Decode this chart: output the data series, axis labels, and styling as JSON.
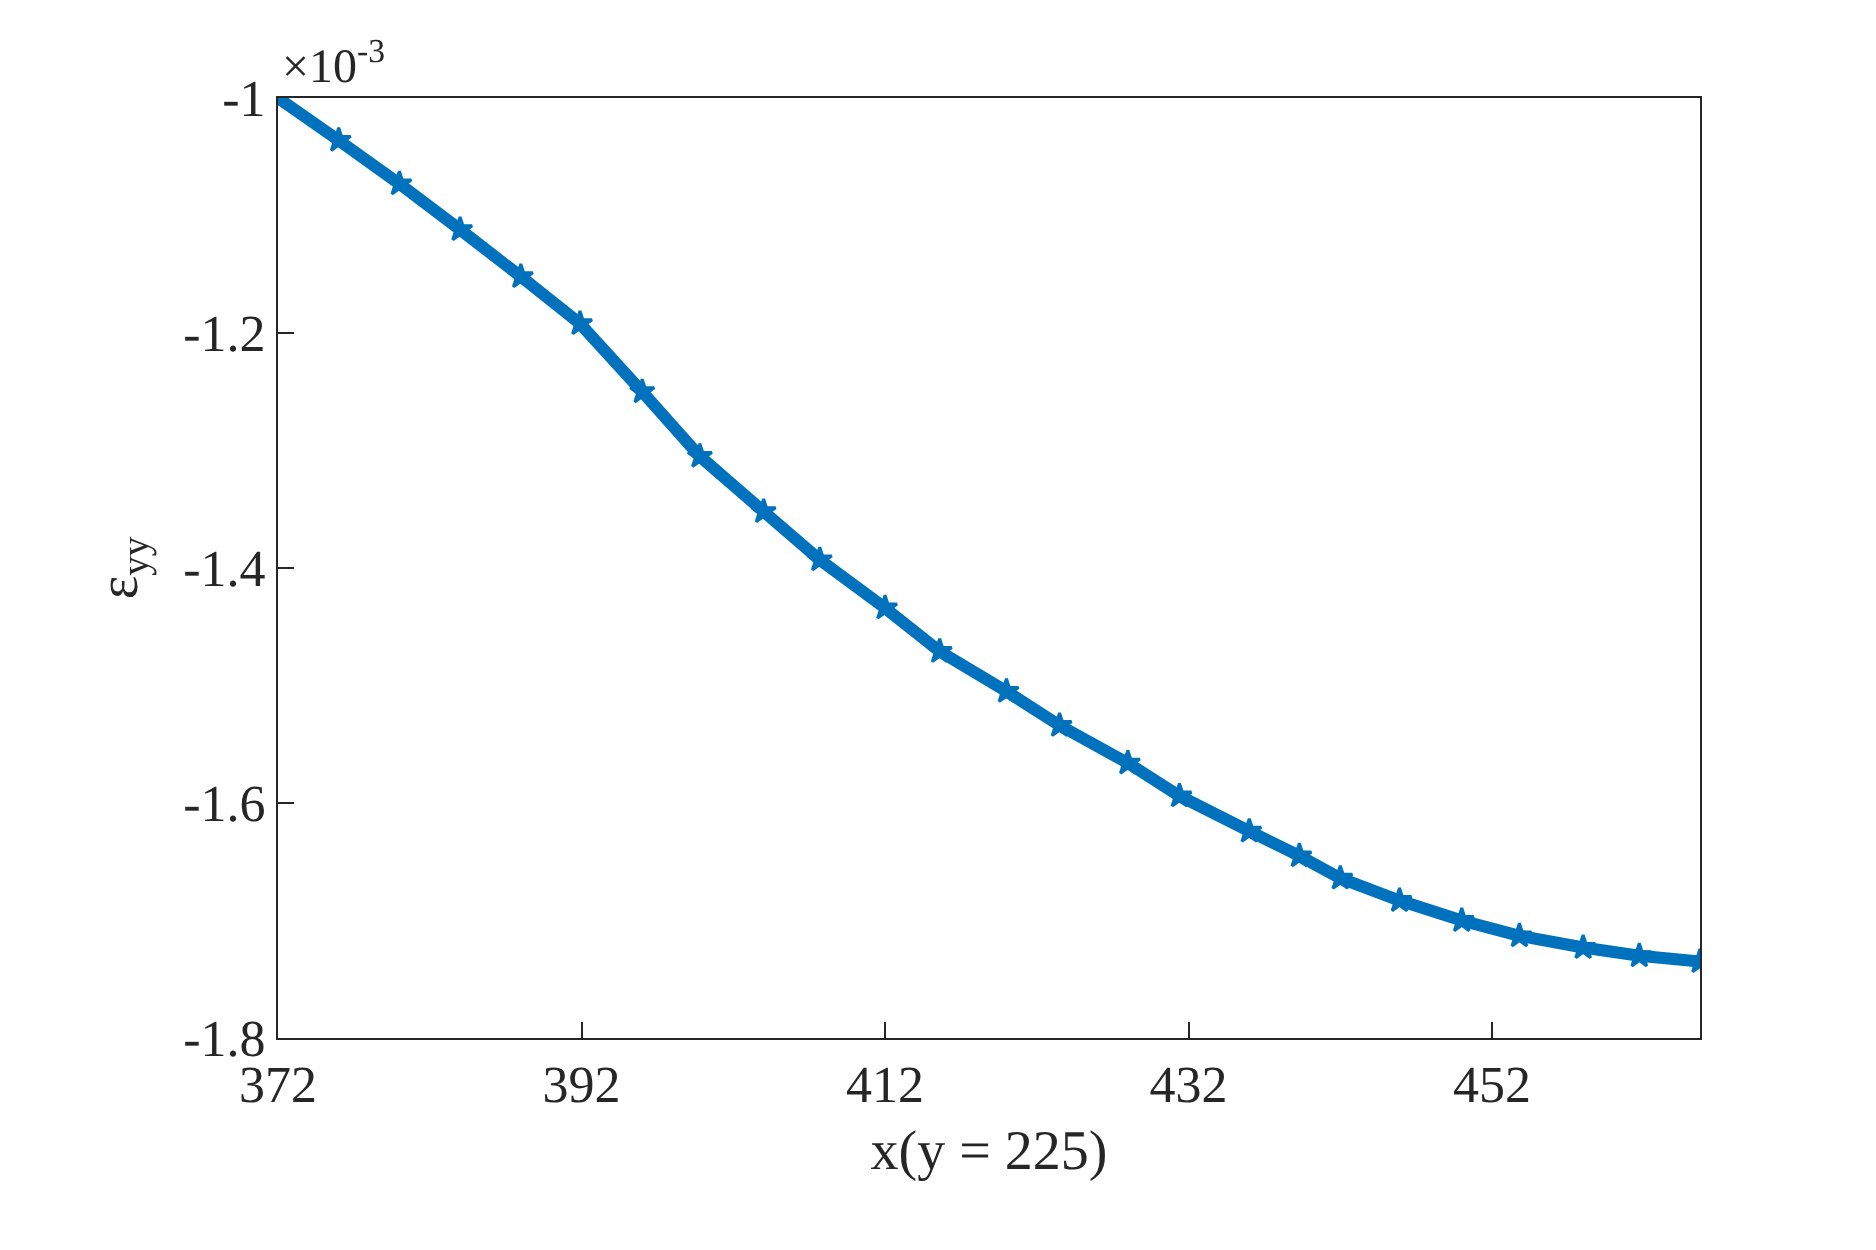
{
  "chart_data": {
    "type": "line",
    "xlabel": "x(y = 225)",
    "ylabel": "ε$_{yy}$",
    "annotations": [
      "×10$^{-3}$"
    ],
    "x": [
      372,
      376,
      380,
      384,
      388,
      391.9,
      396,
      399.8,
      404,
      407.7,
      412,
      415.6,
      420,
      423.5,
      428,
      431.4,
      436,
      439.3,
      442,
      445.9,
      450,
      453.8,
      458,
      461.7,
      465.7
    ],
    "series": [
      {
        "color": "#0072bd",
        "values": [
          -1.0,
          -1.036,
          -1.073,
          -1.112,
          -1.152,
          -1.192,
          -1.25,
          -1.305,
          -1.352,
          -1.393,
          -1.434,
          -1.471,
          -1.505,
          -1.534,
          -1.566,
          -1.594,
          -1.624,
          -1.645,
          -1.664,
          -1.683,
          -1.7,
          -1.713,
          -1.723,
          -1.73,
          -1.735
        ]
      }
    ],
    "xlim": [
      372,
      465.7
    ],
    "xticks": [
      372,
      392,
      412,
      432,
      452
    ],
    "ylim": [
      -1.8,
      -1.0
    ],
    "yticks": [
      {
        "value": -1.8,
        "label": "-1.8"
      },
      {
        "value": -1.6,
        "label": "-1.6"
      },
      {
        "value": -1.4,
        "label": "-1.4"
      },
      {
        "value": -1.2,
        "label": "-1.2"
      },
      {
        "value": -1.0,
        "label": "-1"
      }
    ],
    "legend": false,
    "marker": "star",
    "line_style": "solid"
  }
}
